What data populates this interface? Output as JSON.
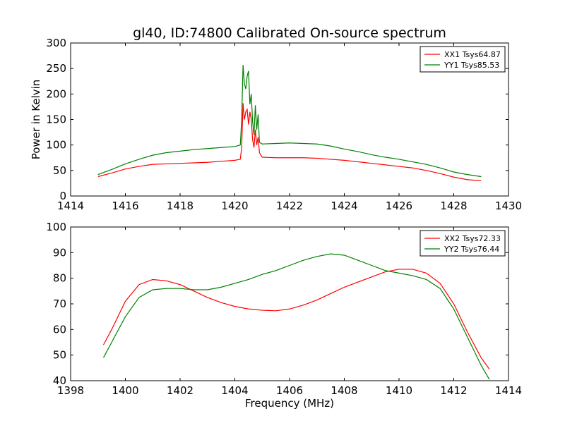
{
  "figure_title": "gl40, ID:74800 Calibrated On-source spectrum",
  "chart_data": [
    {
      "type": "line",
      "ylabel": "Power in Kelvin",
      "xlabel": "",
      "xlim": [
        1414,
        1430
      ],
      "ylim": [
        0,
        300
      ],
      "xticks": [
        "1414",
        "1416",
        "1418",
        "1420",
        "1422",
        "1424",
        "1426",
        "1428",
        "1430"
      ],
      "yticks": [
        "0",
        "50",
        "100",
        "150",
        "200",
        "250",
        "300"
      ],
      "legend_position": "top-right",
      "series": [
        {
          "name": "XX1 Tsys64.87",
          "color": "#ff0000",
          "x": [
            1415.0,
            1415.5,
            1416.0,
            1416.5,
            1417.0,
            1417.5,
            1418.0,
            1418.5,
            1419.0,
            1419.5,
            1420.0,
            1420.2,
            1420.25,
            1420.3,
            1420.35,
            1420.4,
            1420.45,
            1420.5,
            1420.55,
            1420.6,
            1420.65,
            1420.7,
            1420.75,
            1420.8,
            1420.85,
            1420.9,
            1421.0,
            1421.5,
            1422.0,
            1422.5,
            1423.0,
            1423.5,
            1424.0,
            1424.5,
            1425.0,
            1425.5,
            1426.0,
            1426.5,
            1427.0,
            1427.5,
            1428.0,
            1428.5,
            1429.0
          ],
          "y": [
            38,
            45,
            53,
            58,
            62,
            63,
            64,
            65,
            66,
            68,
            70,
            72,
            95,
            182,
            150,
            165,
            170,
            140,
            165,
            150,
            110,
            95,
            130,
            100,
            115,
            85,
            76,
            75,
            75,
            75,
            74,
            72,
            70,
            67,
            64,
            61,
            58,
            55,
            50,
            44,
            37,
            32,
            30
          ]
        },
        {
          "name": "YY1 Tsys85.53",
          "color": "#008000",
          "x": [
            1415.0,
            1415.5,
            1416.0,
            1416.5,
            1417.0,
            1417.5,
            1418.0,
            1418.5,
            1419.0,
            1419.5,
            1420.0,
            1420.2,
            1420.25,
            1420.3,
            1420.35,
            1420.4,
            1420.45,
            1420.5,
            1420.55,
            1420.6,
            1420.65,
            1420.7,
            1420.75,
            1420.8,
            1420.85,
            1420.9,
            1421.0,
            1421.5,
            1422.0,
            1422.5,
            1423.0,
            1423.5,
            1424.0,
            1424.5,
            1425.0,
            1425.5,
            1426.0,
            1426.5,
            1427.0,
            1427.5,
            1428.0,
            1428.5,
            1429.0
          ],
          "y": [
            42,
            52,
            63,
            72,
            80,
            85,
            88,
            91,
            93,
            95,
            97,
            100,
            150,
            257,
            220,
            210,
            235,
            245,
            180,
            200,
            145,
            120,
            178,
            130,
            160,
            105,
            102,
            103,
            104,
            103,
            102,
            98,
            92,
            87,
            81,
            76,
            72,
            67,
            62,
            55,
            47,
            42,
            38
          ]
        }
      ]
    },
    {
      "type": "line",
      "ylabel": "",
      "xlabel": "Frequency (MHz)",
      "xlim": [
        1398,
        1414
      ],
      "ylim": [
        40,
        100
      ],
      "xticks": [
        "1398",
        "1400",
        "1402",
        "1404",
        "1406",
        "1408",
        "1410",
        "1412",
        "1414"
      ],
      "yticks": [
        "40",
        "50",
        "60",
        "70",
        "80",
        "90",
        "100"
      ],
      "legend_position": "top-right",
      "series": [
        {
          "name": "XX2 Tsys72.33",
          "color": "#ff0000",
          "x": [
            1399.2,
            1399.5,
            1400.0,
            1400.5,
            1401.0,
            1401.5,
            1402.0,
            1402.5,
            1403.0,
            1403.5,
            1404.0,
            1404.5,
            1405.0,
            1405.5,
            1406.0,
            1406.5,
            1407.0,
            1407.5,
            1408.0,
            1408.5,
            1409.0,
            1409.5,
            1410.0,
            1410.5,
            1411.0,
            1411.5,
            1412.0,
            1412.5,
            1413.0,
            1413.3
          ],
          "y": [
            54,
            60,
            71,
            77.5,
            79.5,
            79,
            77.5,
            75,
            72.5,
            70.5,
            69,
            68,
            67.5,
            67.3,
            68,
            69.5,
            71.5,
            74,
            76.5,
            78.5,
            80.5,
            82.5,
            83.5,
            83.5,
            82,
            78,
            70,
            59,
            49,
            44.5
          ]
        },
        {
          "name": "YY2 Tsys76.44",
          "color": "#008000",
          "x": [
            1399.2,
            1399.5,
            1400.0,
            1400.5,
            1401.0,
            1401.5,
            1402.0,
            1402.5,
            1403.0,
            1403.5,
            1404.0,
            1404.5,
            1405.0,
            1405.5,
            1406.0,
            1406.5,
            1407.0,
            1407.5,
            1408.0,
            1408.5,
            1409.0,
            1409.5,
            1410.0,
            1410.5,
            1411.0,
            1411.5,
            1412.0,
            1412.5,
            1413.0,
            1413.3
          ],
          "y": [
            49,
            55,
            65,
            72.5,
            75.5,
            76,
            76,
            75.5,
            75.5,
            76.5,
            78,
            79.5,
            81.5,
            83,
            85,
            87,
            88.5,
            89.5,
            89,
            87,
            85,
            83,
            82,
            81,
            79.5,
            76,
            68,
            57,
            46,
            40.5
          ]
        }
      ]
    }
  ]
}
